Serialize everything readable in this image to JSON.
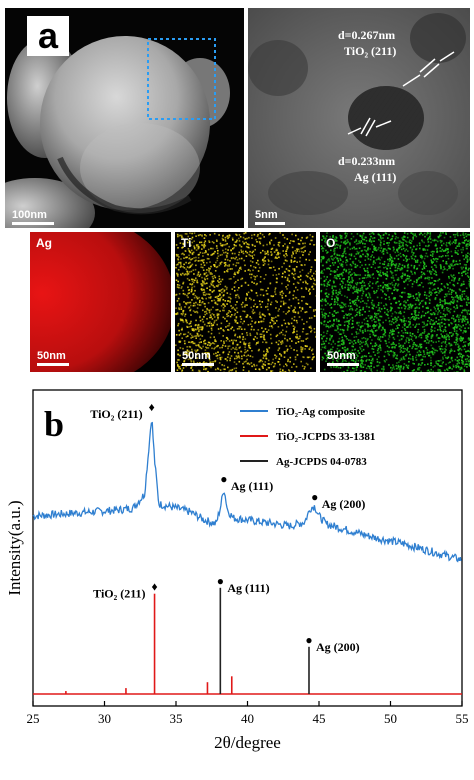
{
  "panel_a": {
    "letter": "a",
    "sem": {
      "scale_label": "100nm"
    },
    "hrtem": {
      "scale_label": "5nm",
      "annotation_tio2_d": "d=0.267nm",
      "annotation_tio2_plane": "TiO₂ (211)",
      "annotation_ag_d": "d=0.233nm",
      "annotation_ag_plane": "Ag (111)"
    },
    "maps": [
      {
        "element": "Ag",
        "scale_label": "50nm",
        "color": "#e01010"
      },
      {
        "element": "Ti",
        "scale_label": "50nm",
        "color": "#e6d21a"
      },
      {
        "element": "O",
        "scale_label": "50nm",
        "color": "#22c81e"
      }
    ]
  },
  "panel_b": {
    "letter": "b",
    "chart_data": {
      "type": "line",
      "xlabel": "2θ/degree",
      "ylabel": "Intensity(a.u.)",
      "xlim": [
        25,
        55
      ],
      "xticks": [
        25,
        30,
        35,
        40,
        45,
        50,
        55
      ],
      "legend_position": "top-right",
      "series": [
        {
          "name": "TiO₂-Ag composite",
          "color": "#2f7fd0",
          "x": [
            25,
            27,
            29,
            31,
            32,
            32.8,
            33.1,
            33.3,
            33.5,
            33.8,
            35,
            36,
            37,
            37.8,
            38.1,
            38.35,
            38.6,
            39,
            40,
            41,
            42,
            43,
            44,
            44.4,
            44.7,
            45,
            45.5,
            47,
            49,
            51,
            53,
            55
          ],
          "y": [
            46,
            47,
            48,
            49,
            50,
            57,
            80,
            96,
            74,
            52,
            50,
            48,
            44,
            42,
            50,
            60,
            49,
            45,
            44,
            43,
            42,
            41,
            43,
            50,
            51,
            46,
            42,
            39,
            35,
            32,
            28,
            24
          ]
        },
        {
          "name": "TiO₂-JCPDS 33-1381",
          "color": "#e01818",
          "x": [
            27.3,
            31.5,
            33.5,
            37.2,
            38.9
          ],
          "y": [
            0.5,
            1,
            17,
            2,
            3
          ]
        },
        {
          "name": "Ag-JCPDS 04-0783",
          "color": "#222222",
          "x": [
            38.1,
            44.3
          ],
          "y": [
            18,
            8
          ]
        }
      ],
      "annotations": [
        {
          "text": "TiO₂ (211)",
          "marker": "♦",
          "x": 33.3,
          "on": "composite"
        },
        {
          "text": "Ag (111)",
          "marker": "●",
          "x": 38.35,
          "on": "composite"
        },
        {
          "text": "Ag (200)",
          "marker": "●",
          "x": 44.7,
          "on": "composite"
        },
        {
          "text": "TiO₂ (211)",
          "marker": "♦",
          "x": 33.5,
          "on": "reference"
        },
        {
          "text": "Ag (111)",
          "marker": "●",
          "x": 38.1,
          "on": "reference"
        },
        {
          "text": "Ag (200)",
          "marker": "●",
          "x": 44.3,
          "on": "reference"
        }
      ]
    }
  }
}
